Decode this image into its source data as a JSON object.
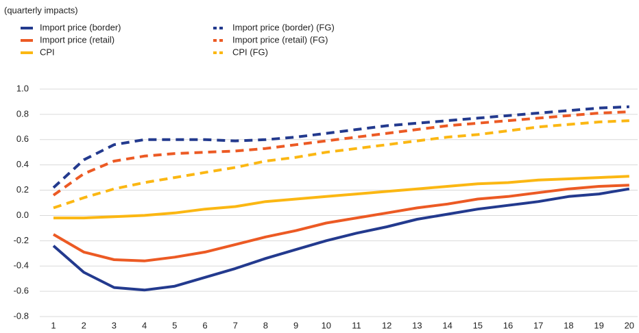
{
  "chart_data": {
    "type": "line",
    "subtitle": "(quarterly impacts)",
    "categories": [
      "1",
      "2",
      "3",
      "4",
      "5",
      "6",
      "7",
      "8",
      "9",
      "10",
      "11",
      "12",
      "13",
      "14",
      "15",
      "16",
      "17",
      "18",
      "19",
      "20"
    ],
    "ylim": [
      -0.8,
      1.0
    ],
    "yticks": [
      {
        "value": 1.0,
        "label": "1.0"
      },
      0.8,
      0.6,
      0.4,
      0.2,
      {
        "value": 0,
        "label": "0.0"
      },
      -0.2,
      -0.4,
      -0.6,
      -0.8
    ],
    "grid": true,
    "series": [
      {
        "name": "Import price (border)",
        "color": "#233a8e",
        "dashed": false,
        "values": [
          -0.24,
          -0.45,
          -0.57,
          -0.59,
          -0.56,
          -0.49,
          -0.42,
          -0.34,
          -0.27,
          -0.2,
          -0.14,
          -0.09,
          -0.03,
          0.01,
          0.05,
          0.08,
          0.11,
          0.15,
          0.17,
          0.21
        ]
      },
      {
        "name": "Import price (retail)",
        "color": "#ec5a24",
        "dashed": false,
        "values": [
          -0.15,
          -0.29,
          -0.35,
          -0.36,
          -0.33,
          -0.29,
          -0.23,
          -0.17,
          -0.12,
          -0.06,
          -0.02,
          0.02,
          0.06,
          0.09,
          0.13,
          0.15,
          0.18,
          0.21,
          0.23,
          0.24
        ]
      },
      {
        "name": "CPI",
        "color": "#fbb713",
        "dashed": false,
        "values": [
          -0.02,
          -0.02,
          -0.01,
          0.0,
          0.02,
          0.05,
          0.07,
          0.11,
          0.13,
          0.15,
          0.17,
          0.19,
          0.21,
          0.23,
          0.25,
          0.26,
          0.28,
          0.29,
          0.3,
          0.31
        ]
      },
      {
        "name": "Import price (border) (FG)",
        "color": "#233a8e",
        "dashed": true,
        "values": [
          0.22,
          0.44,
          0.56,
          0.6,
          0.6,
          0.6,
          0.59,
          0.6,
          0.62,
          0.65,
          0.68,
          0.71,
          0.73,
          0.75,
          0.77,
          0.79,
          0.81,
          0.83,
          0.85,
          0.86
        ]
      },
      {
        "name": "Import price (retail) (FG)",
        "color": "#ec5a24",
        "dashed": true,
        "values": [
          0.16,
          0.33,
          0.43,
          0.47,
          0.49,
          0.5,
          0.51,
          0.53,
          0.56,
          0.59,
          0.62,
          0.65,
          0.68,
          0.71,
          0.73,
          0.75,
          0.77,
          0.79,
          0.81,
          0.82
        ]
      },
      {
        "name": "CPI (FG)",
        "color": "#fbb713",
        "dashed": true,
        "values": [
          0.06,
          0.14,
          0.21,
          0.26,
          0.3,
          0.34,
          0.38,
          0.43,
          0.46,
          0.5,
          0.53,
          0.56,
          0.59,
          0.62,
          0.64,
          0.67,
          0.7,
          0.72,
          0.74,
          0.75
        ]
      }
    ]
  }
}
